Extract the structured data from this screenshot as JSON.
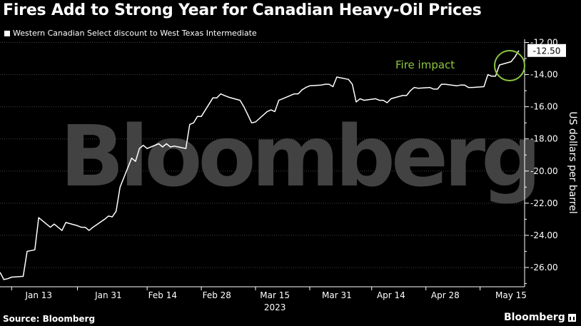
{
  "title": "Fires Add to Strong Year for Canadian Heavy-Oil Prices",
  "legend_label": "Western Canadian Select discount to West Texas Intermediate",
  "source": "Source: Bloomberg",
  "brand": "Bloomberg",
  "watermark": "Bloomberg",
  "colors": {
    "background": "#000000",
    "line": "#ffffff",
    "grid": "#444444",
    "annotation": "#8dc63f"
  },
  "chart_data": {
    "type": "line",
    "title": "Fires Add to Strong Year for Canadian Heavy-Oil Prices",
    "ylabel": "US dollars per barrel",
    "xlabel": "2023",
    "year_label": "2023",
    "ylim": [
      -27.2,
      -11.8
    ],
    "y_ticks": [
      -12,
      -14,
      -16,
      -18,
      -20,
      -22,
      -24,
      -26
    ],
    "y_tick_labels": [
      "-12.00",
      "-14.00",
      "-16.00",
      "-18.00",
      "-20.00",
      "-22.00",
      "-24.00",
      "-26.00"
    ],
    "x_ticks": [
      "Jan 13",
      "Jan 31",
      "Feb 14",
      "Feb 28",
      "Mar 15",
      "Mar 31",
      "Apr 14",
      "Apr 28",
      "May 15"
    ],
    "last_value_label": "-12.50",
    "annotation": "Fire impact",
    "grid": true,
    "series": [
      {
        "name": "Western Canadian Select discount to West Texas Intermediate",
        "x": [
          "2023-01-03",
          "2023-01-04",
          "2023-01-05",
          "2023-01-06",
          "2023-01-09",
          "2023-01-10",
          "2023-01-11",
          "2023-01-12",
          "2023-01-13",
          "2023-01-16",
          "2023-01-17",
          "2023-01-18",
          "2023-01-19",
          "2023-01-20",
          "2023-01-23",
          "2023-01-24",
          "2023-01-25",
          "2023-01-26",
          "2023-01-27",
          "2023-01-30",
          "2023-01-31",
          "2023-02-01",
          "2023-02-02",
          "2023-02-03",
          "2023-02-06",
          "2023-02-07",
          "2023-02-08",
          "2023-02-09",
          "2023-02-10",
          "2023-02-13",
          "2023-02-14",
          "2023-02-15",
          "2023-02-16",
          "2023-02-17",
          "2023-02-20",
          "2023-02-21",
          "2023-02-22",
          "2023-02-23",
          "2023-02-24",
          "2023-02-27",
          "2023-02-28",
          "2023-03-01",
          "2023-03-02",
          "2023-03-03",
          "2023-03-06",
          "2023-03-07",
          "2023-03-08",
          "2023-03-09",
          "2023-03-10",
          "2023-03-13",
          "2023-03-14",
          "2023-03-15",
          "2023-03-16",
          "2023-03-17",
          "2023-03-20",
          "2023-03-21",
          "2023-03-22",
          "2023-03-23",
          "2023-03-24",
          "2023-03-27",
          "2023-03-28",
          "2023-03-29",
          "2023-03-30",
          "2023-03-31",
          "2023-04-03",
          "2023-04-04",
          "2023-04-05",
          "2023-04-06",
          "2023-04-07",
          "2023-04-10",
          "2023-04-11",
          "2023-04-12",
          "2023-04-13",
          "2023-04-14",
          "2023-04-17",
          "2023-04-18",
          "2023-04-19",
          "2023-04-20",
          "2023-04-21",
          "2023-04-24",
          "2023-04-25",
          "2023-04-26",
          "2023-04-27",
          "2023-04-28",
          "2023-05-01",
          "2023-05-02",
          "2023-05-03",
          "2023-05-04",
          "2023-05-05",
          "2023-05-08",
          "2023-05-09",
          "2023-05-10",
          "2023-05-11",
          "2023-05-12",
          "2023-05-15",
          "2023-05-16",
          "2023-05-17"
        ],
        "values": [
          -26.3,
          -26.75,
          -26.7,
          -26.6,
          -26.55,
          -25.0,
          -24.95,
          -24.9,
          -22.9,
          -23.5,
          -23.3,
          -23.5,
          -23.7,
          -23.2,
          -23.4,
          -23.5,
          -23.5,
          -23.7,
          -23.5,
          -23.0,
          -22.8,
          -22.85,
          -22.5,
          -21.0,
          -19.2,
          -19.4,
          -18.6,
          -18.4,
          -18.6,
          -18.3,
          -18.5,
          -18.3,
          -18.5,
          -18.45,
          -18.6,
          -17.1,
          -17.0,
          -16.6,
          -16.6,
          -15.45,
          -15.45,
          -15.2,
          -15.3,
          -15.4,
          -15.6,
          -16.0,
          -16.5,
          -17.0,
          -16.95,
          -16.3,
          -16.2,
          -16.3,
          -15.6,
          -15.5,
          -15.2,
          -15.2,
          -14.95,
          -14.8,
          -14.7,
          -14.65,
          -14.6,
          -14.6,
          -14.75,
          -14.15,
          -14.3,
          -14.6,
          -15.7,
          -15.5,
          -15.6,
          -15.5,
          -15.6,
          -15.6,
          -15.75,
          -15.5,
          -15.3,
          -15.3,
          -15.0,
          -14.8,
          -14.85,
          -14.8,
          -14.9,
          -14.9,
          -14.6,
          -14.6,
          -14.7,
          -14.65,
          -14.65,
          -14.8,
          -14.8,
          -14.75,
          -14.0,
          -14.1,
          -14.1,
          -13.4,
          -13.2,
          -12.9,
          -12.5
        ]
      }
    ]
  }
}
